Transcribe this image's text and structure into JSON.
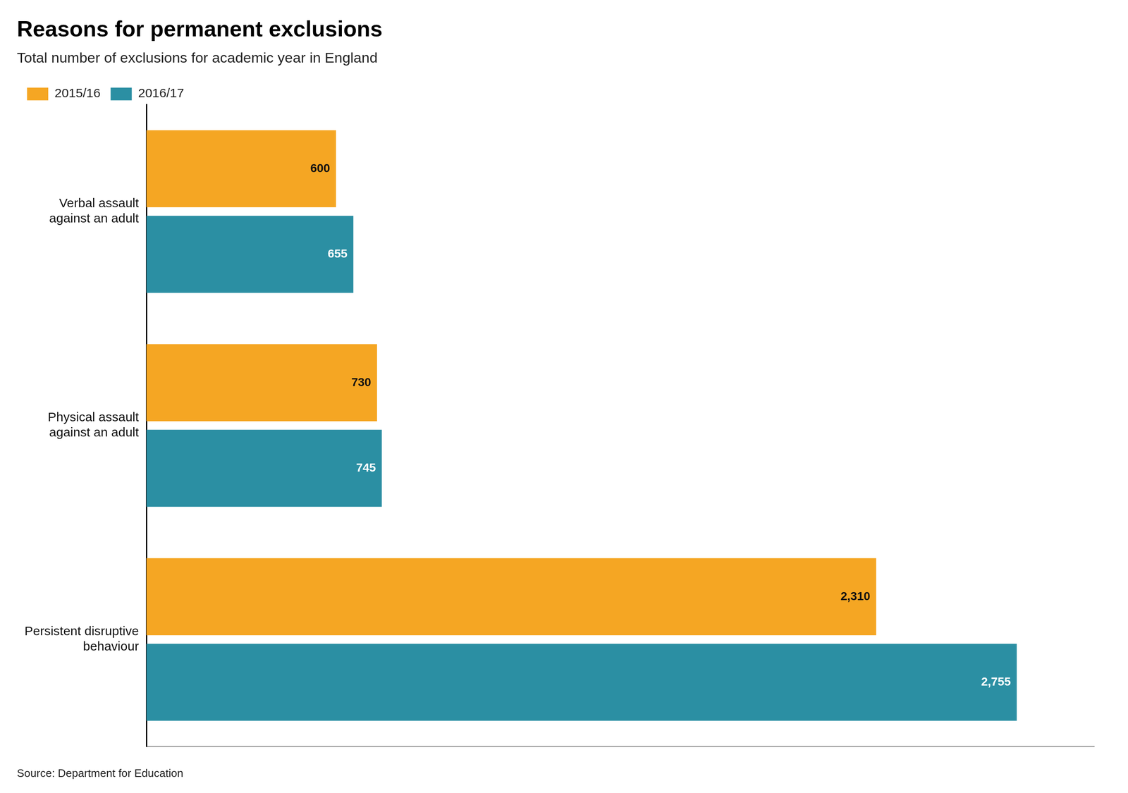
{
  "chart_data": {
    "type": "bar",
    "orientation": "horizontal",
    "title": "Reasons for permanent exclusions",
    "subtitle": "Total number of exclusions for academic year in England",
    "annotation": "Source: Department for Education",
    "categories": [
      "Verbal assault\nagainst an adult",
      "Physical assault\nagainst an adult",
      "Persistent disruptive\nbehaviour"
    ],
    "series": [
      {
        "name": "2015/16",
        "color": "#F5A623",
        "values": [
          600,
          730,
          2310
        ],
        "value_labels": [
          "600",
          "730",
          "2,310"
        ]
      },
      {
        "name": "2016/17",
        "color": "#2B8FA3",
        "values": [
          655,
          745,
          2755
        ],
        "value_labels": [
          "655",
          "745",
          "2,755"
        ]
      }
    ],
    "xlim": [
      0,
      3000
    ],
    "grid": false,
    "legend": "top left",
    "data_labels": true,
    "tick_labels": "y"
  }
}
